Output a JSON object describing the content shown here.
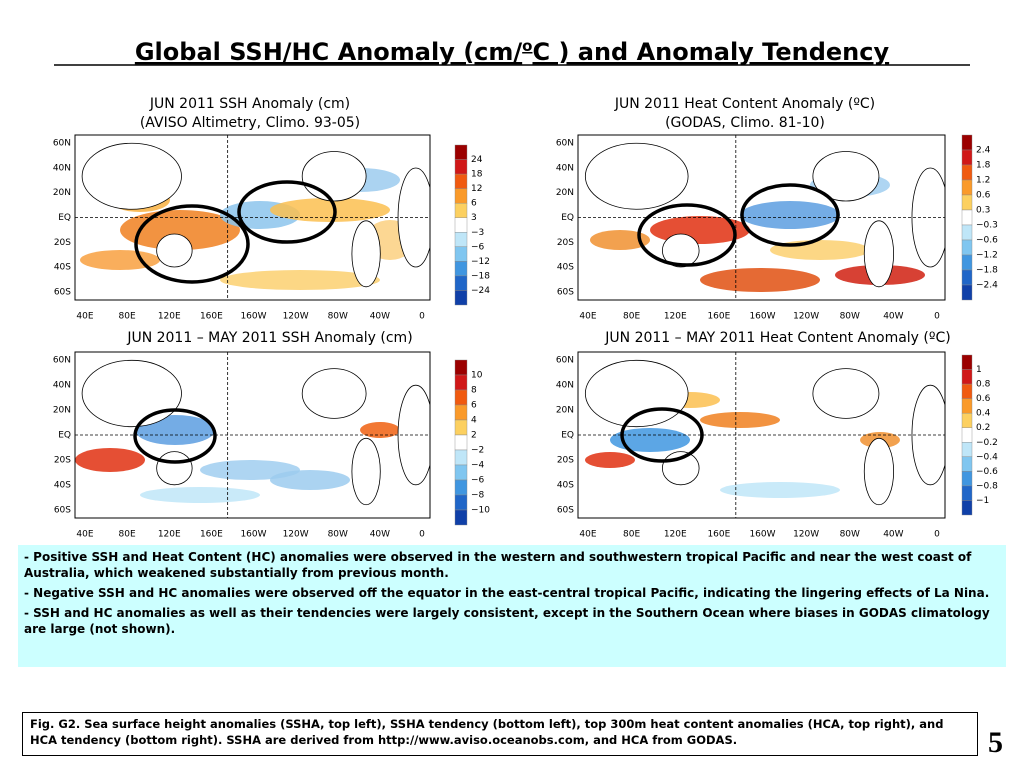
{
  "title": {
    "before": "Global SSH/HC Anomaly (cm/",
    "sup": "o",
    "after": "C ) and Anomaly Tendency"
  },
  "panels": [
    {
      "title_lines": [
        "JUN 2011 SSH Anomaly (cm)",
        "(AVISO Altimetry, Climo. 93-05)"
      ],
      "lat_labels": [
        "60N",
        "40N",
        "20N",
        "EQ",
        "20S",
        "40S",
        "60S"
      ],
      "lon_labels": [
        "40E",
        "80E",
        "120E",
        "160E",
        "160W",
        "120W",
        "80W",
        "40W",
        "0"
      ],
      "colorbar_labels": [
        "24",
        "18",
        "12",
        "6",
        "3",
        "−3",
        "−6",
        "−12",
        "−18",
        "−24"
      ]
    },
    {
      "title_lines": [
        "JUN 2011 Heat Content Anomaly (ºC)",
        "(GODAS,  Climo. 81-10)"
      ],
      "lat_labels": [
        "60N",
        "40N",
        "20N",
        "EQ",
        "20S",
        "40S",
        "60S"
      ],
      "lon_labels": [
        "40E",
        "80E",
        "120E",
        "160E",
        "160W",
        "120W",
        "80W",
        "40W",
        "0"
      ],
      "colorbar_labels": [
        "2.4",
        "1.8",
        "1.2",
        "0.6",
        "0.3",
        "−0.3",
        "−0.6",
        "−1.2",
        "−1.8",
        "−2.4"
      ]
    },
    {
      "title_lines": [
        "JUN 2011 – MAY 2011 SSH Anomaly (cm)"
      ],
      "lat_labels": [
        "60N",
        "40N",
        "20N",
        "EQ",
        "20S",
        "40S",
        "60S"
      ],
      "lon_labels": [
        "40E",
        "80E",
        "120E",
        "160E",
        "160W",
        "120W",
        "80W",
        "40W",
        "0"
      ],
      "colorbar_labels": [
        "10",
        "8",
        "6",
        "4",
        "2",
        "−2",
        "−4",
        "−6",
        "−8",
        "−10"
      ]
    },
    {
      "title_lines": [
        "JUN 2011 – MAY 2011 Heat Content Anomaly (ºC)"
      ],
      "lat_labels": [
        "60N",
        "40N",
        "20N",
        "EQ",
        "20S",
        "40S",
        "60S"
      ],
      "lon_labels": [
        "40E",
        "80E",
        "120E",
        "160E",
        "160W",
        "120W",
        "80W",
        "40W",
        "0"
      ],
      "colorbar_labels": [
        "1",
        "0.8",
        "0.6",
        "0.4",
        "0.2",
        "−0.2",
        "−0.4",
        "−0.6",
        "−0.8",
        "−1"
      ]
    }
  ],
  "bullets": [
    "-  Positive SSH and Heat Content (HC) anomalies were observed in the western and southwestern tropical Pacific and near the west coast of Australia, which weakened substantially from previous month.",
    "-  Negative SSH and HC anomalies were observed off the equator in the east-central tropical Pacific, indicating the lingering effects of La Nina.",
    "- SSH and HC  anomalies  as well as their tendencies were largely consistent, except in the Southern Ocean where biases in GODAS climatology are large (not shown)."
  ],
  "caption": "Fig. G2. Sea surface height anomalies (SSHA, top left), SSHA tendency (bottom left), top 300m heat content anomalies (HCA, top right), and HCA tendency (bottom right).  SSHA are derived from http://www.aviso.oceanobs.com, and HCA from GODAS.",
  "page_number": "5"
}
